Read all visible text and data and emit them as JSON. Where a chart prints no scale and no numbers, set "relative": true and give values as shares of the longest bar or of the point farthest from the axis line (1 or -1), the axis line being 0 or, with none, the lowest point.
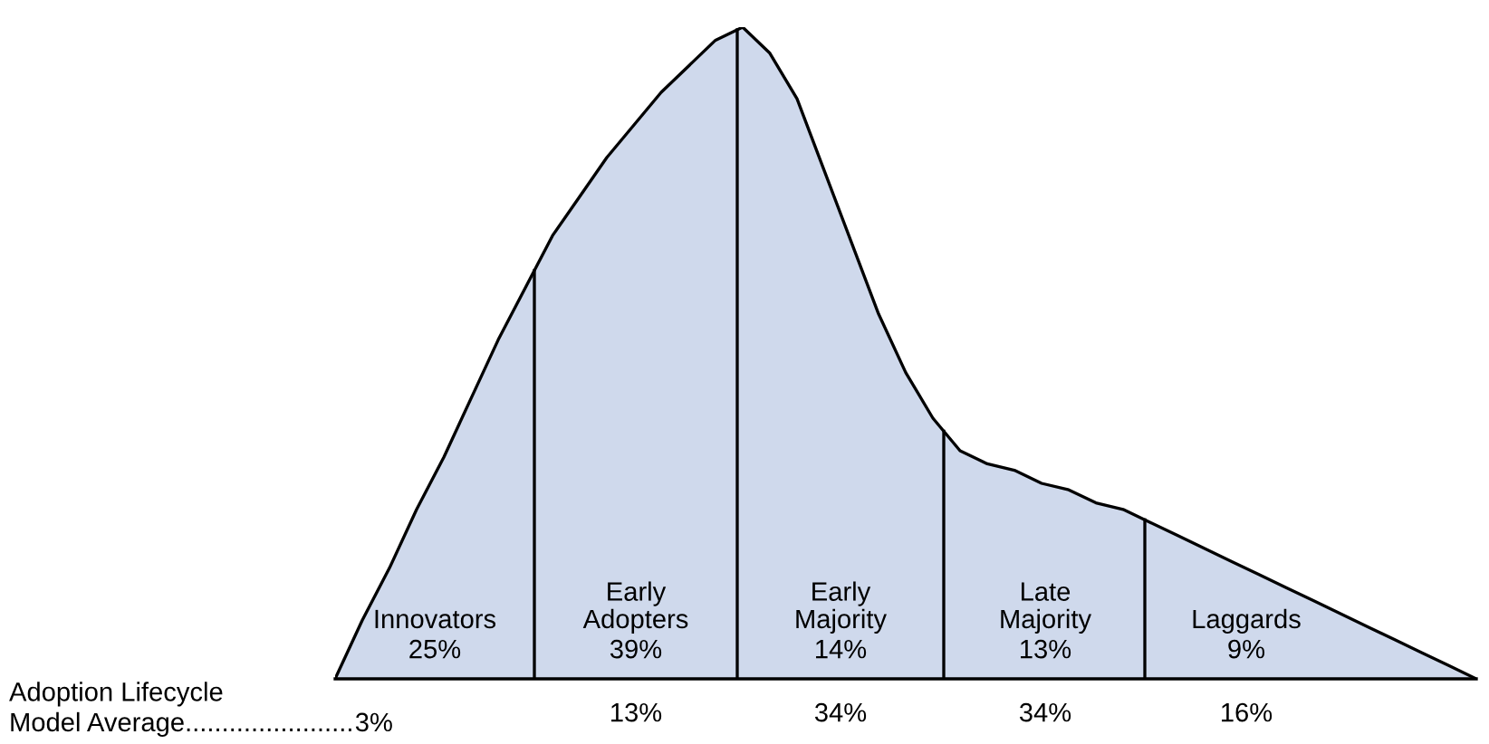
{
  "chart_data": [
    {
      "type": "area",
      "relative": true,
      "categories": [
        null,
        null,
        null,
        null,
        null,
        null,
        null,
        null,
        null,
        null,
        null,
        null,
        null,
        null,
        null,
        null,
        null,
        null,
        null,
        null,
        null,
        null,
        null,
        null,
        null,
        null,
        null,
        null,
        null,
        null,
        null,
        null,
        null,
        null,
        null,
        null,
        null,
        null,
        null,
        null,
        null,
        null,
        null
      ],
      "series": [
        {
          "color": "#cfd9ec",
          "values": [
            0,
            0.09,
            0.17,
            0.26,
            0.34,
            0.43,
            0.52,
            0.6,
            0.68,
            0.74,
            0.8,
            0.85,
            0.9,
            0.94,
            0.98,
            1.0,
            0.96,
            0.89,
            0.78,
            0.67,
            0.56,
            0.47,
            0.4,
            0.35,
            0.33,
            0.32,
            0.3,
            0.29,
            0.27,
            0.26,
            0.24,
            0.22,
            0.2,
            0.18,
            0.16,
            0.14,
            0.12,
            0.1,
            0.08,
            0.06,
            0.04,
            0.02,
            0
          ]
        }
      ]
    },
    {
      "type": "other",
      "categories": [
        "Innovators",
        "Early\nAdopters",
        "Early\nMajority",
        "Late\nMajority",
        "Laggards"
      ],
      "series": [
        {
          "values": [
            25,
            39,
            14,
            13,
            9
          ],
          "value_labels": [
            "25%",
            "39%",
            "14%",
            "13%",
            "9%"
          ]
        },
        {
          "name": "Adoption Lifecycle\nModel Average.......................",
          "values": [
            3,
            13,
            34,
            34,
            16
          ],
          "value_labels": [
            "3%",
            "13%",
            "34%",
            "34%",
            "16%"
          ]
        }
      ]
    }
  ]
}
